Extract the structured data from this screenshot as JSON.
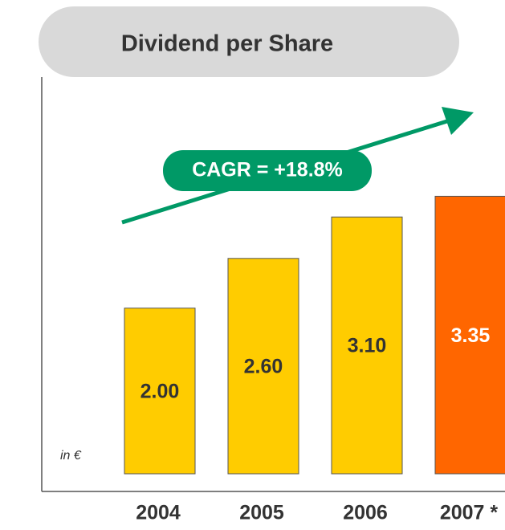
{
  "chart_data": {
    "type": "bar",
    "title": "Dividend per Share",
    "categories": [
      "2004",
      "2005",
      "2006",
      "2007 *"
    ],
    "values": [
      2.0,
      2.6,
      3.1,
      3.35
    ],
    "value_labels": [
      "2.00",
      "2.60",
      "3.10",
      "3.35"
    ],
    "colors": [
      "#ffcc00",
      "#ffcc00",
      "#ffcc00",
      "#ff6600"
    ],
    "value_label_colors": [
      "#333333",
      "#333333",
      "#333333",
      "#ffffff"
    ],
    "ylim": [
      0,
      4.75
    ],
    "unit_label": "in €",
    "annotation": "CAGR = +18.8%",
    "annotation_color": "#009966"
  }
}
